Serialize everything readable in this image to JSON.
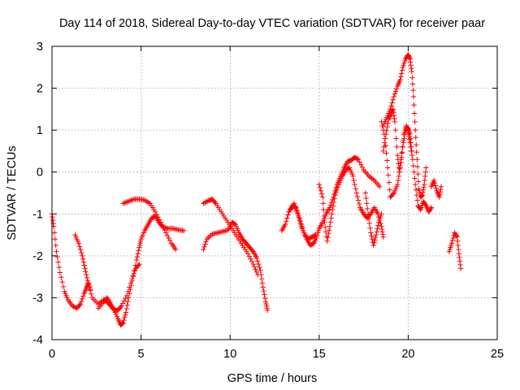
{
  "chart_data": {
    "type": "scatter",
    "title": "Day 114 of 2018, Sidereal Day-to-day VTEC variation (SDTVAR) for receiver paar",
    "xlabel": "GPS time / hours",
    "ylabel": "SDTVAR / TECUs",
    "xlim": [
      0,
      25
    ],
    "ylim": [
      -4,
      3
    ],
    "xticks": [
      0,
      5,
      10,
      15,
      20,
      25
    ],
    "yticks": [
      -4,
      -3,
      -2,
      -1,
      0,
      1,
      2,
      3
    ],
    "grid": true,
    "marker": "+",
    "color": "#ff0000",
    "segments": [
      {
        "name": "lower-arc-1",
        "points": [
          [
            0.0,
            -1.0
          ],
          [
            0.1,
            -1.3
          ],
          [
            0.25,
            -1.9
          ],
          [
            0.45,
            -2.4
          ],
          [
            0.7,
            -2.85
          ],
          [
            0.9,
            -3.05
          ],
          [
            1.15,
            -3.2
          ],
          [
            1.4,
            -3.25
          ],
          [
            1.6,
            -3.15
          ],
          [
            1.8,
            -2.9
          ],
          [
            1.95,
            -2.75
          ],
          [
            2.05,
            -2.65
          ],
          [
            2.25,
            -3.0
          ],
          [
            2.6,
            -3.15
          ],
          [
            2.9,
            -3.05
          ],
          [
            3.1,
            -3.1
          ],
          [
            3.3,
            -3.2
          ],
          [
            3.5,
            -3.3
          ],
          [
            3.7,
            -3.5
          ],
          [
            3.85,
            -3.65
          ],
          [
            4.0,
            -3.6
          ],
          [
            4.15,
            -3.35
          ],
          [
            4.3,
            -3.0
          ],
          [
            4.5,
            -2.6
          ],
          [
            4.75,
            -2.1
          ],
          [
            4.9,
            -1.8
          ],
          [
            5.0,
            -1.6
          ],
          [
            5.2,
            -1.4
          ],
          [
            5.4,
            -1.25
          ],
          [
            5.6,
            -1.1
          ],
          [
            5.8,
            -1.05
          ],
          [
            6.0,
            -1.2
          ],
          [
            6.2,
            -1.3
          ],
          [
            6.5,
            -1.35
          ],
          [
            6.8,
            -1.35
          ],
          [
            7.1,
            -1.38
          ],
          [
            7.4,
            -1.4
          ]
        ]
      },
      {
        "name": "lower-arc-2",
        "points": [
          [
            1.3,
            -1.5
          ],
          [
            1.5,
            -1.7
          ],
          [
            1.7,
            -2.0
          ],
          [
            1.85,
            -2.3
          ],
          [
            2.0,
            -2.6
          ],
          [
            2.15,
            -2.8
          ]
        ]
      },
      {
        "name": "lower-arc-3",
        "points": [
          [
            2.6,
            -3.25
          ],
          [
            2.9,
            -3.1
          ],
          [
            3.1,
            -3.0
          ],
          [
            3.3,
            -3.15
          ],
          [
            3.5,
            -3.3
          ],
          [
            3.7,
            -3.3
          ],
          [
            3.9,
            -3.2
          ],
          [
            4.2,
            -2.95
          ],
          [
            4.5,
            -2.55
          ],
          [
            4.7,
            -2.3
          ],
          [
            4.9,
            -2.2
          ]
        ]
      },
      {
        "name": "upper-arc-1",
        "points": [
          [
            4.0,
            -0.75
          ],
          [
            4.3,
            -0.7
          ],
          [
            4.6,
            -0.65
          ],
          [
            4.9,
            -0.65
          ],
          [
            5.2,
            -0.67
          ],
          [
            5.5,
            -0.75
          ],
          [
            5.8,
            -0.95
          ],
          [
            6.1,
            -1.2
          ],
          [
            6.4,
            -1.45
          ],
          [
            6.7,
            -1.7
          ],
          [
            6.95,
            -1.85
          ]
        ]
      },
      {
        "name": "upper-arc-2",
        "points": [
          [
            8.5,
            -0.75
          ],
          [
            8.8,
            -0.68
          ],
          [
            9.0,
            -0.65
          ],
          [
            9.2,
            -0.75
          ],
          [
            9.5,
            -0.95
          ],
          [
            9.8,
            -1.15
          ],
          [
            10.1,
            -1.35
          ],
          [
            10.4,
            -1.55
          ],
          [
            10.7,
            -1.75
          ],
          [
            11.0,
            -1.95
          ],
          [
            11.3,
            -2.2
          ],
          [
            11.55,
            -2.45
          ]
        ]
      },
      {
        "name": "lower-arc-4",
        "points": [
          [
            8.5,
            -1.85
          ],
          [
            8.7,
            -1.6
          ],
          [
            9.0,
            -1.48
          ],
          [
            9.3,
            -1.45
          ],
          [
            9.6,
            -1.42
          ],
          [
            9.9,
            -1.38
          ],
          [
            10.1,
            -1.2
          ],
          [
            10.3,
            -1.25
          ],
          [
            10.5,
            -1.45
          ],
          [
            10.7,
            -1.6
          ],
          [
            10.9,
            -1.7
          ],
          [
            11.1,
            -1.8
          ],
          [
            11.3,
            -1.9
          ],
          [
            11.5,
            -2.05
          ],
          [
            11.7,
            -2.35
          ],
          [
            11.85,
            -2.75
          ],
          [
            12.0,
            -3.1
          ],
          [
            12.1,
            -3.3
          ]
        ]
      },
      {
        "name": "mid-arc-1",
        "points": [
          [
            12.9,
            -1.4
          ],
          [
            13.1,
            -1.25
          ],
          [
            13.3,
            -0.95
          ],
          [
            13.5,
            -0.8
          ],
          [
            13.7,
            -0.85
          ],
          [
            13.9,
            -1.1
          ],
          [
            14.1,
            -1.4
          ],
          [
            14.3,
            -1.6
          ],
          [
            14.5,
            -1.75
          ],
          [
            14.7,
            -1.7
          ],
          [
            14.85,
            -1.55
          ],
          [
            15.0,
            -1.35
          ],
          [
            15.2,
            -1.2
          ],
          [
            15.4,
            -1.0
          ],
          [
            15.6,
            -0.85
          ],
          [
            15.8,
            -0.6
          ],
          [
            16.0,
            -0.3
          ],
          [
            16.2,
            -0.1
          ],
          [
            16.4,
            0.1
          ],
          [
            16.6,
            0.25
          ],
          [
            16.8,
            0.28
          ],
          [
            17.0,
            0.35
          ],
          [
            17.2,
            0.3
          ],
          [
            17.5,
            0.05
          ],
          [
            17.8,
            -0.1
          ],
          [
            18.1,
            -0.2
          ],
          [
            18.4,
            -0.35
          ]
        ]
      },
      {
        "name": "mid-arc-2",
        "points": [
          [
            13.4,
            -0.9
          ],
          [
            13.6,
            -0.75
          ],
          [
            13.8,
            -1.0
          ],
          [
            14.0,
            -1.3
          ],
          [
            14.2,
            -1.5
          ],
          [
            14.4,
            -1.6
          ],
          [
            14.6,
            -1.55
          ],
          [
            14.8,
            -1.5
          ]
        ]
      },
      {
        "name": "mid-arc-3",
        "points": [
          [
            15.0,
            -0.3
          ],
          [
            15.2,
            -0.6
          ],
          [
            15.3,
            -1.2
          ],
          [
            15.45,
            -1.65
          ],
          [
            15.6,
            -1.3
          ],
          [
            15.75,
            -0.9
          ],
          [
            15.9,
            -0.55
          ],
          [
            16.1,
            -0.3
          ],
          [
            16.3,
            -0.1
          ],
          [
            16.5,
            0.05
          ],
          [
            16.7,
            0.1
          ],
          [
            16.9,
            -0.1
          ],
          [
            17.1,
            -0.5
          ],
          [
            17.3,
            -0.85
          ],
          [
            17.5,
            -1.0
          ],
          [
            17.7,
            -1.1
          ],
          [
            17.9,
            -1.0
          ],
          [
            18.1,
            -0.85
          ],
          [
            18.3,
            -1.0
          ],
          [
            18.5,
            -1.3
          ],
          [
            18.6,
            -1.55
          ]
        ]
      },
      {
        "name": "mid-arc-4",
        "points": [
          [
            17.6,
            -0.5
          ],
          [
            17.75,
            -1.0
          ],
          [
            17.9,
            -1.45
          ],
          [
            18.05,
            -1.75
          ],
          [
            18.2,
            -1.5
          ],
          [
            18.35,
            -1.2
          ],
          [
            18.5,
            -1.0
          ]
        ]
      },
      {
        "name": "peak-upper",
        "points": [
          [
            18.6,
            1.1
          ],
          [
            18.8,
            1.3
          ],
          [
            19.0,
            1.5
          ],
          [
            19.2,
            1.8
          ],
          [
            19.4,
            2.05
          ],
          [
            19.55,
            2.2
          ],
          [
            19.7,
            2.5
          ],
          [
            19.85,
            2.7
          ],
          [
            20.0,
            2.8
          ],
          [
            20.1,
            2.7
          ],
          [
            20.2,
            2.4
          ],
          [
            20.3,
            1.8
          ],
          [
            20.4,
            1.0
          ],
          [
            20.5,
            0.3
          ],
          [
            20.6,
            -0.4
          ],
          [
            20.7,
            -0.6
          ],
          [
            20.8,
            -0.55
          ],
          [
            20.9,
            -0.3
          ],
          [
            21.0,
            0.1
          ]
        ]
      },
      {
        "name": "peak-lower",
        "points": [
          [
            18.6,
            0.5
          ],
          [
            18.75,
            0.9
          ],
          [
            18.9,
            1.25
          ],
          [
            19.05,
            1.4
          ],
          [
            19.15,
            1.5
          ],
          [
            19.25,
            1.2
          ],
          [
            19.4,
            0.4
          ],
          [
            19.5,
            0.0
          ],
          [
            19.6,
            0.3
          ],
          [
            19.75,
            0.9
          ],
          [
            19.9,
            1.1
          ],
          [
            20.0,
            1.0
          ],
          [
            20.1,
            0.7
          ],
          [
            20.25,
            0.3
          ],
          [
            20.4,
            -0.3
          ],
          [
            20.55,
            -0.8
          ],
          [
            20.7,
            -0.9
          ],
          [
            20.85,
            -0.7
          ],
          [
            21.0,
            -0.8
          ],
          [
            21.15,
            -0.95
          ],
          [
            21.3,
            -0.85
          ]
        ]
      },
      {
        "name": "peak-tail",
        "points": [
          [
            18.5,
            1.2
          ],
          [
            18.7,
            0.8
          ],
          [
            18.85,
            0.1
          ],
          [
            19.0,
            -0.6
          ],
          [
            19.2,
            -0.5
          ],
          [
            19.4,
            -0.3
          ],
          [
            19.55,
            0.1
          ],
          [
            19.7,
            0.6
          ],
          [
            19.85,
            1.0
          ],
          [
            20.0,
            1.05
          ],
          [
            20.1,
            0.9
          ],
          [
            20.2,
            0.5
          ]
        ]
      },
      {
        "name": "late-cluster",
        "points": [
          [
            21.3,
            -0.35
          ],
          [
            21.45,
            -0.2
          ],
          [
            21.6,
            -0.45
          ],
          [
            21.75,
            -0.6
          ],
          [
            21.85,
            -0.35
          ]
        ]
      },
      {
        "name": "final-segment",
        "points": [
          [
            22.3,
            -1.9
          ],
          [
            22.45,
            -1.7
          ],
          [
            22.6,
            -1.45
          ],
          [
            22.75,
            -1.55
          ],
          [
            22.85,
            -1.95
          ],
          [
            22.95,
            -2.3
          ]
        ]
      }
    ]
  }
}
